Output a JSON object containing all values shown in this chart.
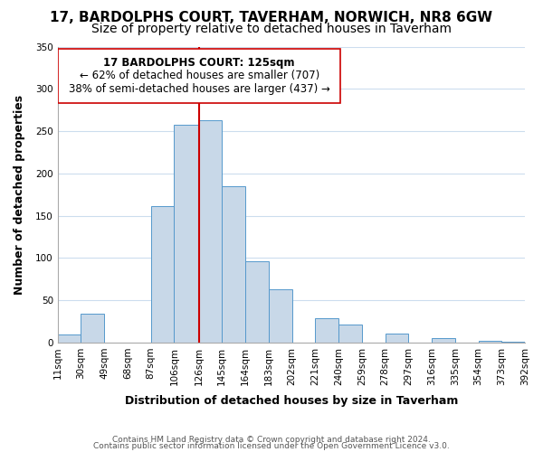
{
  "title": "17, BARDOLPHS COURT, TAVERHAM, NORWICH, NR8 6GW",
  "subtitle": "Size of property relative to detached houses in Taverham",
  "xlabel": "Distribution of detached houses by size in Taverham",
  "ylabel": "Number of detached properties",
  "bar_color": "#c8d8e8",
  "bar_edge_color": "#5599cc",
  "marker_line_color": "#cc0000",
  "bin_edges": [
    11,
    30,
    49,
    68,
    87,
    106,
    126,
    145,
    164,
    183,
    202,
    221,
    240,
    259,
    278,
    297,
    316,
    335,
    354,
    373,
    392
  ],
  "bin_labels": [
    "11sqm",
    "30sqm",
    "49sqm",
    "68sqm",
    "87sqm",
    "106sqm",
    "126sqm",
    "145sqm",
    "164sqm",
    "183sqm",
    "202sqm",
    "221sqm",
    "240sqm",
    "259sqm",
    "278sqm",
    "297sqm",
    "316sqm",
    "335sqm",
    "354sqm",
    "373sqm",
    "392sqm"
  ],
  "bar_heights": [
    9,
    34,
    0,
    0,
    161,
    258,
    263,
    185,
    96,
    63,
    0,
    29,
    21,
    0,
    11,
    0,
    5,
    0,
    2,
    1
  ],
  "ylim": [
    0,
    350
  ],
  "yticks": [
    0,
    50,
    100,
    150,
    200,
    250,
    300,
    350
  ],
  "annotation_title": "17 BARDOLPHS COURT: 125sqm",
  "annotation_line1": "← 62% of detached houses are smaller (707)",
  "annotation_line2": "38% of semi-detached houses are larger (437) →",
  "footer_line1": "Contains HM Land Registry data © Crown copyright and database right 2024.",
  "footer_line2": "Contains public sector information licensed under the Open Government Licence v3.0.",
  "background_color": "#ffffff",
  "grid_color": "#ccddee",
  "title_fontsize": 11,
  "subtitle_fontsize": 10,
  "axis_label_fontsize": 9,
  "tick_fontsize": 7.5,
  "annotation_fontsize": 8.5,
  "footer_fontsize": 6.5
}
